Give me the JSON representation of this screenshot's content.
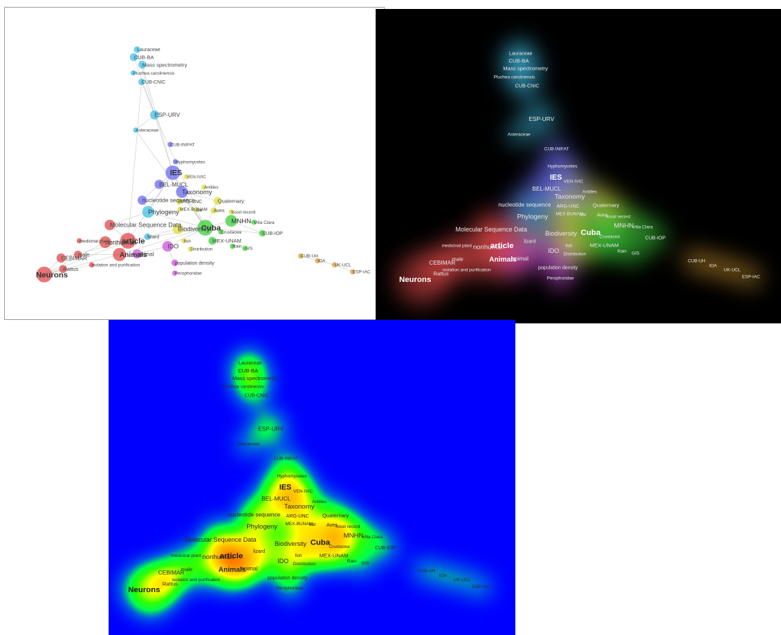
{
  "colors": {
    "blue": "#6a6af0",
    "cyan": "#40c0e8",
    "green": "#3ad03a",
    "yellow": "#e0e040",
    "red": "#e04848",
    "magenta": "#d050e0",
    "orange": "#e0a030",
    "teal": "#40b8c8",
    "dark_bg": "#000000",
    "heat_bg": "#0000ff"
  },
  "terms": [
    {
      "id": "lauraceae",
      "label": "Lauraceae",
      "size": 5,
      "cluster": "cyan"
    },
    {
      "id": "cub-ba",
      "label": "CUB-BA",
      "size": 6,
      "cluster": "cyan"
    },
    {
      "id": "mass",
      "label": "Mass spectrometry",
      "size": 6,
      "cluster": "cyan"
    },
    {
      "id": "pluchea",
      "label": "Pluchea carolinensis",
      "size": 4,
      "cluster": "cyan"
    },
    {
      "id": "cub-cnic",
      "label": "CUB-CNIC",
      "size": 5,
      "cluster": "cyan"
    },
    {
      "id": "esp-urv",
      "label": "ESP-URV",
      "size": 7,
      "cluster": "cyan"
    },
    {
      "id": "asteraceae",
      "label": "Asteraceae",
      "size": 4,
      "cluster": "cyan"
    },
    {
      "id": "cub-inifat",
      "label": "CUB-INIFAT",
      "size": 4,
      "cluster": "blue"
    },
    {
      "id": "hyphomycetes",
      "label": "Hyphomycetes",
      "size": 4,
      "cluster": "blue"
    },
    {
      "id": "ies",
      "label": "IES",
      "size": 11,
      "cluster": "blue"
    },
    {
      "id": "ven-ivic",
      "label": "VEN-IVIC",
      "size": 4,
      "cluster": "yellow"
    },
    {
      "id": "bel-mucl",
      "label": "BEL-MUCL",
      "size": 7,
      "cluster": "blue"
    },
    {
      "id": "antilles",
      "label": "Antilles",
      "size": 4,
      "cluster": "yellow"
    },
    {
      "id": "taxonomy",
      "label": "Taxonomy",
      "size": 9,
      "cluster": "blue"
    },
    {
      "id": "nucleotide",
      "label": "nucleotide sequence",
      "size": 7,
      "cluster": "blue"
    },
    {
      "id": "arg-unc",
      "label": "ARG-UNC",
      "size": 5,
      "cluster": "yellow"
    },
    {
      "id": "quaternary",
      "label": "Quaternary",
      "size": 6,
      "cluster": "yellow"
    },
    {
      "id": "mex-bunam",
      "label": "MEX-BUNAM",
      "size": 4,
      "cluster": "yellow"
    },
    {
      "id": "bat",
      "label": "bat",
      "size": 4,
      "cluster": "yellow"
    },
    {
      "id": "aves",
      "label": "Aves",
      "size": 5,
      "cluster": "yellow"
    },
    {
      "id": "fossil",
      "label": "fossil record",
      "size": 4,
      "cluster": "yellow"
    },
    {
      "id": "phylogeny",
      "label": "Phylogeny",
      "size": 9,
      "cluster": "cyan"
    },
    {
      "id": "mnhn",
      "label": "MNHN",
      "size": 9,
      "cluster": "green"
    },
    {
      "id": "villa-clara",
      "label": "Villa Clara",
      "size": 4,
      "cluster": "green"
    },
    {
      "id": "molecular",
      "label": "Molecular Sequence Data",
      "size": 8,
      "cluster": "red"
    },
    {
      "id": "cuba",
      "label": "Cuba",
      "size": 12,
      "cluster": "green"
    },
    {
      "id": "crustacea",
      "label": "Crustacea",
      "size": 4,
      "cluster": "green"
    },
    {
      "id": "biodiversity",
      "label": "Biodiversity",
      "size": 8,
      "cluster": "yellow"
    },
    {
      "id": "cub-iop",
      "label": "CUB-IOP",
      "size": 5,
      "cluster": "green"
    },
    {
      "id": "mex-unam",
      "label": "MEX-UNAM",
      "size": 6,
      "cluster": "green"
    },
    {
      "id": "lizard",
      "label": "lizard",
      "size": 5,
      "cluster": "cyan"
    },
    {
      "id": "nonhuman",
      "label": "nonhuman",
      "size": 9,
      "cluster": "red"
    },
    {
      "id": "article",
      "label": "article",
      "size": 12,
      "cluster": "red"
    },
    {
      "id": "medicinal",
      "label": "medicinal plant",
      "size": 4,
      "cluster": "red"
    },
    {
      "id": "male",
      "label": "male",
      "size": 6,
      "cluster": "red"
    },
    {
      "id": "ido",
      "label": "IDO",
      "size": 8,
      "cluster": "magenta"
    },
    {
      "id": "fish",
      "label": "fish",
      "size": 4,
      "cluster": "yellow"
    },
    {
      "id": "rain",
      "label": "Rain",
      "size": 4,
      "cluster": "green"
    },
    {
      "id": "gis",
      "label": "GIS",
      "size": 4,
      "cluster": "green"
    },
    {
      "id": "animals",
      "label": "Animals",
      "size": 10,
      "cluster": "red"
    },
    {
      "id": "animal",
      "label": "animal",
      "size": 7,
      "cluster": "magenta"
    },
    {
      "id": "distribution",
      "label": "Distribution",
      "size": 4,
      "cluster": "yellow"
    },
    {
      "id": "cebimar",
      "label": "CEBIMAR",
      "size": 7,
      "cluster": "red"
    },
    {
      "id": "popdensity",
      "label": "population density",
      "size": 5,
      "cluster": "magenta"
    },
    {
      "id": "isolation",
      "label": "isolation and purification",
      "size": 4,
      "cluster": "red"
    },
    {
      "id": "rattus",
      "label": "Rattus",
      "size": 6,
      "cluster": "red"
    },
    {
      "id": "perophoridae",
      "label": "Perophoridae",
      "size": 4,
      "cluster": "magenta"
    },
    {
      "id": "neurons",
      "label": "Neurons",
      "size": 12,
      "cluster": "red"
    },
    {
      "id": "cub-uh",
      "label": "CUB-UH",
      "size": 4,
      "cluster": "orange"
    },
    {
      "id": "ioa",
      "label": "IOA",
      "size": 4,
      "cluster": "orange"
    },
    {
      "id": "uk-ucl",
      "label": "UK-UCL",
      "size": 4,
      "cluster": "orange"
    },
    {
      "id": "esp-iac",
      "label": "ESP-IAC",
      "size": 4,
      "cluster": "orange"
    }
  ]
}
